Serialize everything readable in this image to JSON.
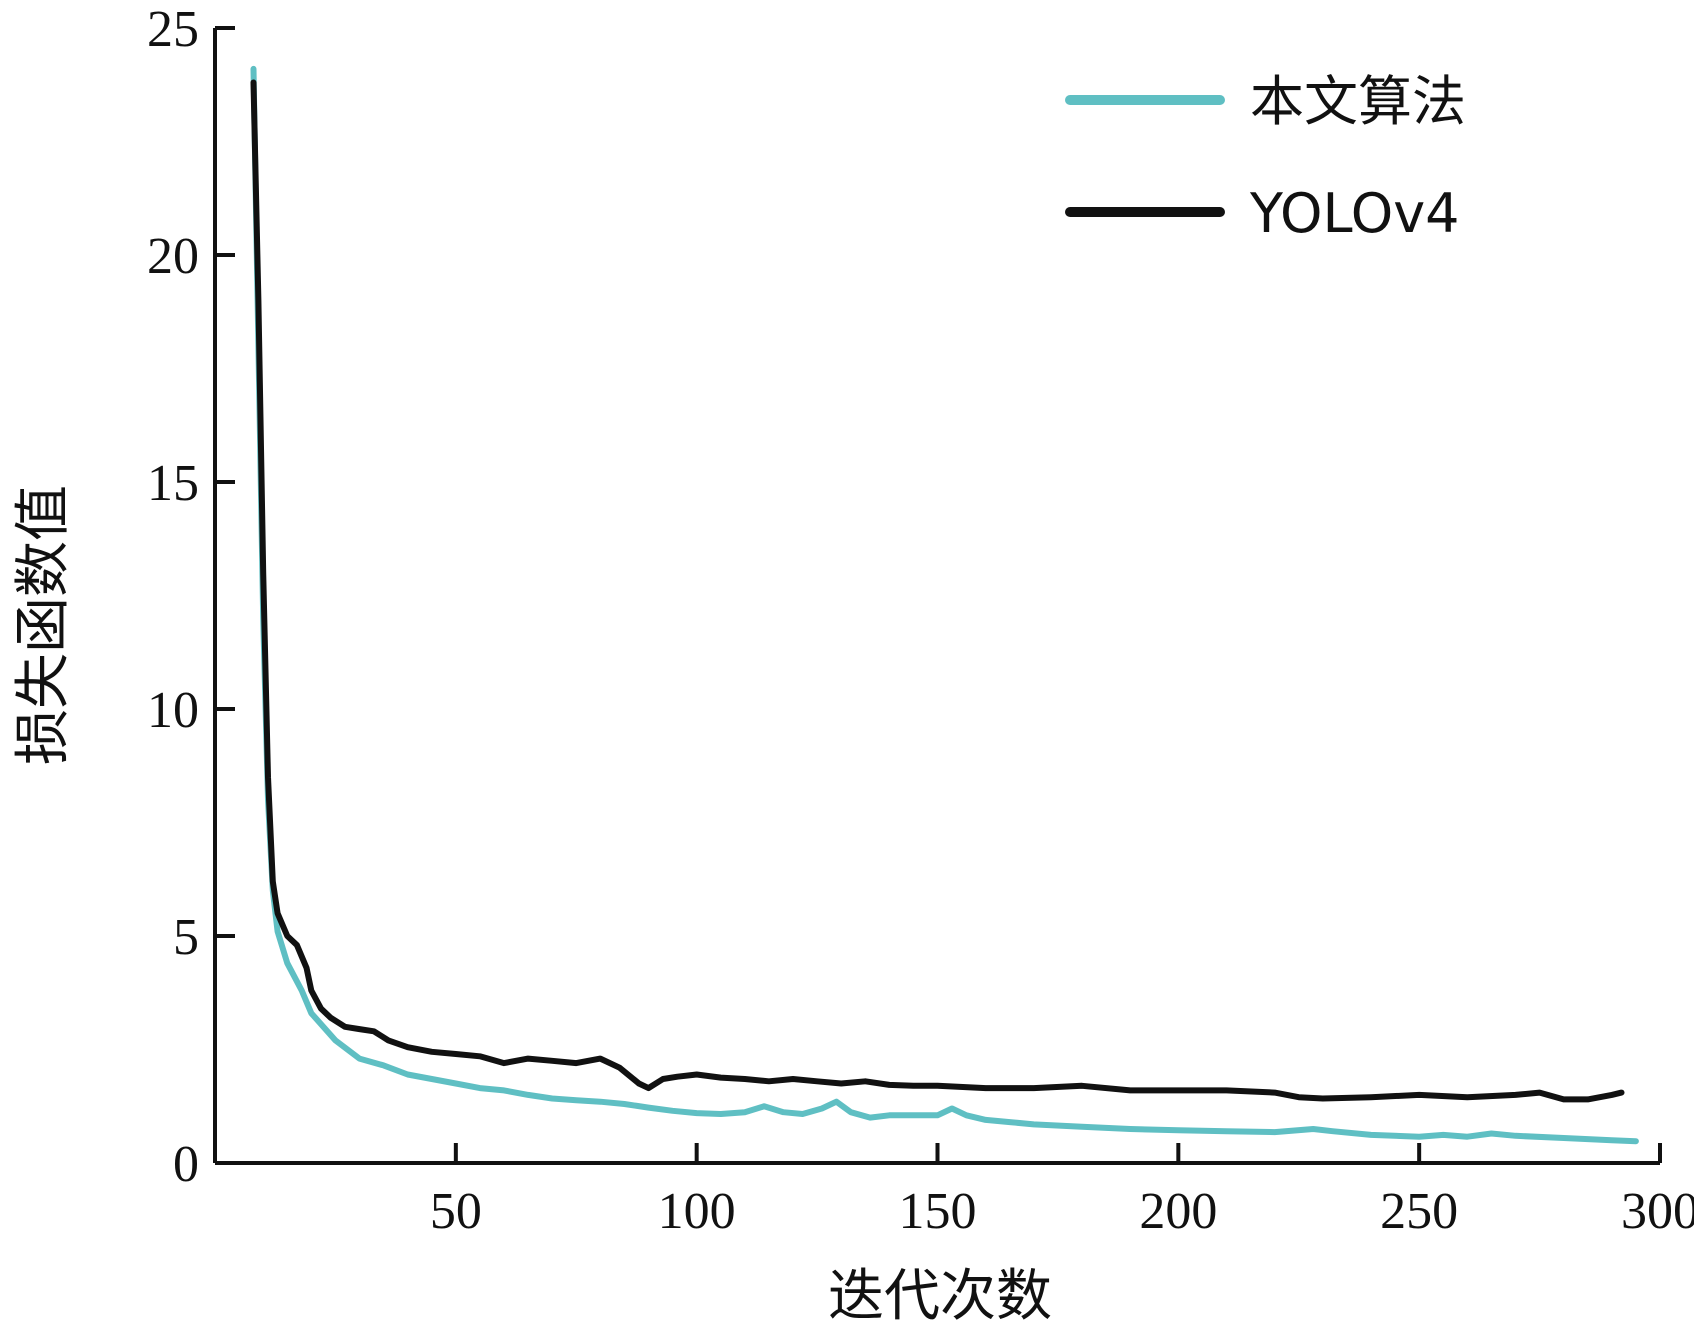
{
  "chart_data": {
    "type": "line",
    "title": "",
    "xlabel": "迭代次数",
    "ylabel": "损失函数值",
    "xlim": [
      0,
      300
    ],
    "ylim": [
      0,
      25
    ],
    "xticks": [
      50,
      100,
      150,
      200,
      250,
      300
    ],
    "yticks": [
      0,
      5,
      10,
      15,
      20,
      25
    ],
    "grid": false,
    "legend_position": "top-right",
    "series": [
      {
        "name": "本文算法",
        "color": "#5fbfc3",
        "points": [
          [
            8,
            24.1
          ],
          [
            9,
            18
          ],
          [
            10,
            12
          ],
          [
            11,
            8
          ],
          [
            12,
            6.0
          ],
          [
            13,
            5.1
          ],
          [
            15,
            4.4
          ],
          [
            18,
            3.8
          ],
          [
            20,
            3.3
          ],
          [
            25,
            2.7
          ],
          [
            30,
            2.3
          ],
          [
            35,
            2.15
          ],
          [
            40,
            1.95
          ],
          [
            45,
            1.85
          ],
          [
            50,
            1.75
          ],
          [
            55,
            1.65
          ],
          [
            60,
            1.6
          ],
          [
            65,
            1.5
          ],
          [
            70,
            1.42
          ],
          [
            75,
            1.38
          ],
          [
            80,
            1.35
          ],
          [
            85,
            1.3
          ],
          [
            90,
            1.22
          ],
          [
            95,
            1.15
          ],
          [
            100,
            1.1
          ],
          [
            105,
            1.08
          ],
          [
            110,
            1.12
          ],
          [
            114,
            1.25
          ],
          [
            118,
            1.12
          ],
          [
            122,
            1.08
          ],
          [
            126,
            1.2
          ],
          [
            129,
            1.35
          ],
          [
            132,
            1.12
          ],
          [
            136,
            1.0
          ],
          [
            140,
            1.05
          ],
          [
            145,
            1.05
          ],
          [
            150,
            1.05
          ],
          [
            153,
            1.2
          ],
          [
            156,
            1.05
          ],
          [
            160,
            0.95
          ],
          [
            165,
            0.9
          ],
          [
            170,
            0.85
          ],
          [
            180,
            0.8
          ],
          [
            190,
            0.75
          ],
          [
            200,
            0.72
          ],
          [
            210,
            0.7
          ],
          [
            220,
            0.68
          ],
          [
            228,
            0.75
          ],
          [
            232,
            0.7
          ],
          [
            240,
            0.62
          ],
          [
            250,
            0.58
          ],
          [
            255,
            0.62
          ],
          [
            260,
            0.58
          ],
          [
            265,
            0.65
          ],
          [
            270,
            0.6
          ],
          [
            280,
            0.55
          ],
          [
            290,
            0.5
          ],
          [
            295,
            0.48
          ]
        ]
      },
      {
        "name": "YOLOv4",
        "color": "#111111",
        "points": [
          [
            8,
            23.8
          ],
          [
            9,
            19
          ],
          [
            10,
            13
          ],
          [
            11,
            8.5
          ],
          [
            12,
            6.2
          ],
          [
            13,
            5.5
          ],
          [
            15,
            5.0
          ],
          [
            17,
            4.8
          ],
          [
            19,
            4.3
          ],
          [
            20,
            3.8
          ],
          [
            22,
            3.4
          ],
          [
            24,
            3.2
          ],
          [
            27,
            3.0
          ],
          [
            30,
            2.95
          ],
          [
            33,
            2.9
          ],
          [
            36,
            2.7
          ],
          [
            40,
            2.55
          ],
          [
            45,
            2.45
          ],
          [
            50,
            2.4
          ],
          [
            55,
            2.35
          ],
          [
            60,
            2.2
          ],
          [
            65,
            2.3
          ],
          [
            70,
            2.25
          ],
          [
            75,
            2.2
          ],
          [
            80,
            2.3
          ],
          [
            84,
            2.1
          ],
          [
            88,
            1.75
          ],
          [
            90,
            1.65
          ],
          [
            93,
            1.85
          ],
          [
            96,
            1.9
          ],
          [
            100,
            1.95
          ],
          [
            105,
            1.88
          ],
          [
            110,
            1.85
          ],
          [
            115,
            1.8
          ],
          [
            120,
            1.85
          ],
          [
            125,
            1.8
          ],
          [
            130,
            1.75
          ],
          [
            135,
            1.8
          ],
          [
            140,
            1.72
          ],
          [
            145,
            1.7
          ],
          [
            150,
            1.7
          ],
          [
            160,
            1.65
          ],
          [
            170,
            1.65
          ],
          [
            180,
            1.7
          ],
          [
            190,
            1.6
          ],
          [
            200,
            1.6
          ],
          [
            210,
            1.6
          ],
          [
            220,
            1.55
          ],
          [
            225,
            1.45
          ],
          [
            230,
            1.42
          ],
          [
            240,
            1.45
          ],
          [
            250,
            1.5
          ],
          [
            260,
            1.45
          ],
          [
            270,
            1.5
          ],
          [
            275,
            1.55
          ],
          [
            280,
            1.4
          ],
          [
            285,
            1.4
          ],
          [
            290,
            1.5
          ],
          [
            292,
            1.55
          ]
        ]
      }
    ]
  }
}
